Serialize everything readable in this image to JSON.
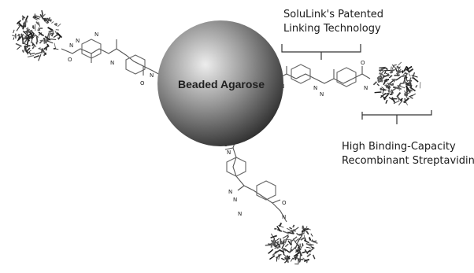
{
  "bead": {
    "label": "Beaded Agarose",
    "color_light": "#e8e8e8",
    "color_mid": "#8a8a8a",
    "color_dark": "#2e2e2e"
  },
  "captions": {
    "linker_line1": "SoluLink's Patented",
    "linker_line2": "Linking Technology",
    "protein_line1": "High Binding-Capacity",
    "protein_line2": "Recombinant Streptavidin"
  },
  "atoms": {
    "nitrogen": "N",
    "oxygen": "O"
  },
  "protein_icon": "streptavidin-protein-icon"
}
